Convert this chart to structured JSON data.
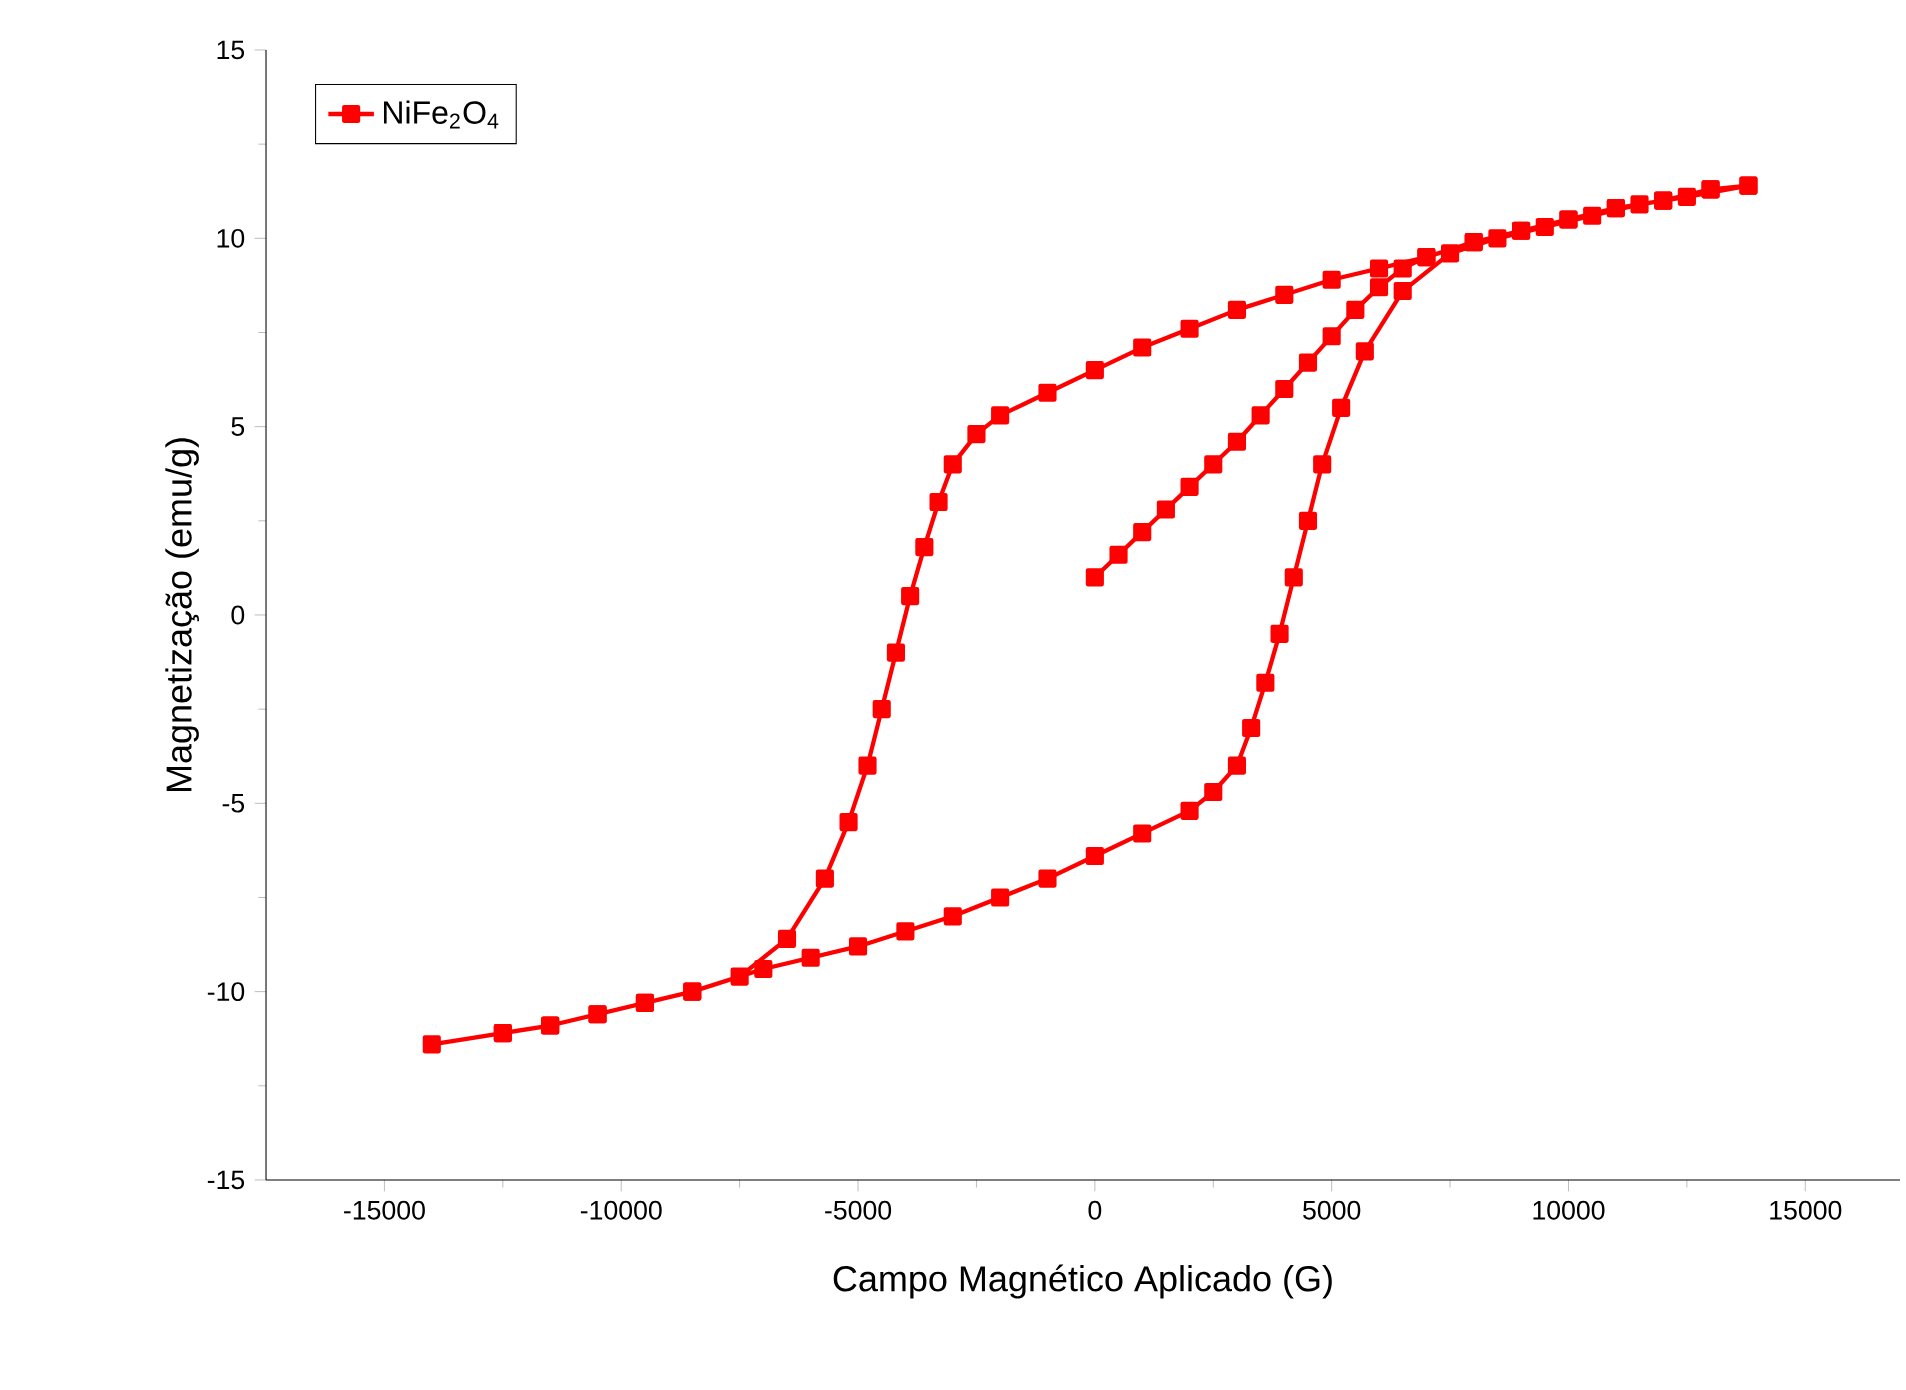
{
  "chart_data": {
    "type": "line",
    "xlabel": "Campo Magnético Aplicado (G)",
    "ylabel": "Magnetização (emu/g)",
    "xlim": [
      -17500,
      17000
    ],
    "ylim": [
      -15,
      15
    ],
    "xticks": [
      -15000,
      -10000,
      -5000,
      0,
      5000,
      10000,
      15000
    ],
    "yticks": [
      -15,
      -10,
      -5,
      0,
      5,
      10,
      15
    ],
    "legend": "top left",
    "marker": "square",
    "line_style": "solid",
    "series": [
      {
        "name": "NiFe$_{2}$O$_{4}$",
        "color": "#ff0000",
        "x": [
          0,
          500,
          1000,
          1500,
          2000,
          2500,
          3000,
          3500,
          4000,
          4500,
          5000,
          5500,
          6000,
          6500,
          7000,
          8000,
          9000,
          10000,
          11000,
          12000,
          13000,
          13800,
          13000,
          12000,
          11000,
          10000,
          9000,
          8000,
          7000,
          6000,
          5000,
          4000,
          3000,
          2000,
          1000,
          0,
          -1000,
          -2000,
          -2500,
          -3000,
          -3300,
          -3600,
          -3900,
          -4200,
          -4500,
          -4800,
          -5200,
          -5700,
          -6500,
          -7500,
          -8500,
          -9500,
          -10500,
          -11500,
          -12500,
          -14000,
          -12500,
          -11500,
          -10500,
          -9500,
          -8500,
          -7000,
          -6000,
          -5000,
          -4000,
          -3000,
          -2000,
          -1000,
          0,
          1000,
          2000,
          2500,
          3000,
          3300,
          3600,
          3900,
          4200,
          4500,
          4800,
          5200,
          5700,
          6500,
          7500,
          8500,
          9500,
          10500,
          11500,
          12500,
          13800
        ],
        "values": [
          1.0,
          1.6,
          2.2,
          2.8,
          3.4,
          4.0,
          4.6,
          5.3,
          6.0,
          6.7,
          7.4,
          8.1,
          8.7,
          9.2,
          9.5,
          9.9,
          10.2,
          10.5,
          10.8,
          11.0,
          11.3,
          11.4,
          11.3,
          11.0,
          10.8,
          10.5,
          10.2,
          9.9,
          9.5,
          9.2,
          8.9,
          8.5,
          8.1,
          7.6,
          7.1,
          6.5,
          5.9,
          5.3,
          4.8,
          4.0,
          3.0,
          1.8,
          0.5,
          -1.0,
          -2.5,
          -4.0,
          -5.5,
          -7.0,
          -8.6,
          -9.6,
          -10.0,
          -10.3,
          -10.6,
          -10.9,
          -11.1,
          -11.4,
          -11.1,
          -10.9,
          -10.6,
          -10.3,
          -10.0,
          -9.4,
          -9.1,
          -8.8,
          -8.4,
          -8.0,
          -7.5,
          -7.0,
          -6.4,
          -5.8,
          -5.2,
          -4.7,
          -4.0,
          -3.0,
          -1.8,
          -0.5,
          1.0,
          2.5,
          4.0,
          5.5,
          7.0,
          8.6,
          9.6,
          10.0,
          10.3,
          10.6,
          10.9,
          11.1,
          11.4
        ]
      }
    ]
  }
}
